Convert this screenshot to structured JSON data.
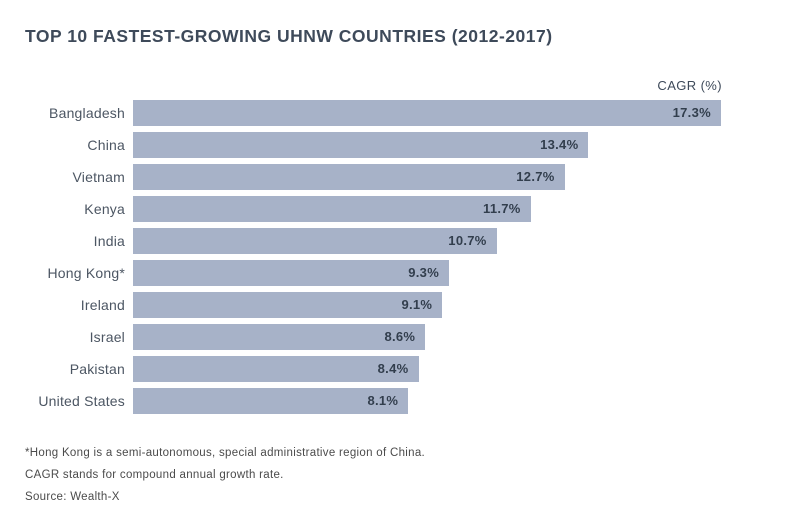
{
  "header": {
    "title": "TOP 10 FASTEST-GROWING UHNW COUNTRIES (2012-2017)",
    "unit_label": "CAGR (%)"
  },
  "chart_data": {
    "type": "bar",
    "orientation": "horizontal",
    "title": "TOP 10 FASTEST-GROWING UHNW COUNTRIES (2012-2017)",
    "xlabel": "CAGR (%)",
    "ylabel": "",
    "categories": [
      "Bangladesh",
      "China",
      "Vietnam",
      "Kenya",
      "India",
      "Hong Kong*",
      "Ireland",
      "Israel",
      "Pakistan",
      "United States"
    ],
    "values": [
      17.3,
      13.4,
      12.7,
      11.7,
      10.7,
      9.3,
      9.1,
      8.6,
      8.4,
      8.1
    ],
    "value_labels": [
      "17.3%",
      "13.4%",
      "12.7%",
      "11.7%",
      "10.7%",
      "9.3%",
      "9.1%",
      "8.6%",
      "8.4%",
      "8.1%"
    ],
    "xlim": [
      0,
      17.3
    ],
    "grid": false,
    "legend": "none",
    "value_label_position": "inside-end"
  },
  "footnotes": {
    "hong_kong_note": "*Hong Kong is a semi-autonomous, special administrative region of China.",
    "cagr_note": "CAGR stands for compound annual growth rate.",
    "source_note": "Source: Wealth-X"
  },
  "colors": {
    "bar_fill": "#a7b2c8",
    "title_text": "#3e4a5a",
    "value_text": "#323e4d",
    "label_text": "#4c5663",
    "footnote_text": "#4b4b4b",
    "background": "#ffffff"
  }
}
